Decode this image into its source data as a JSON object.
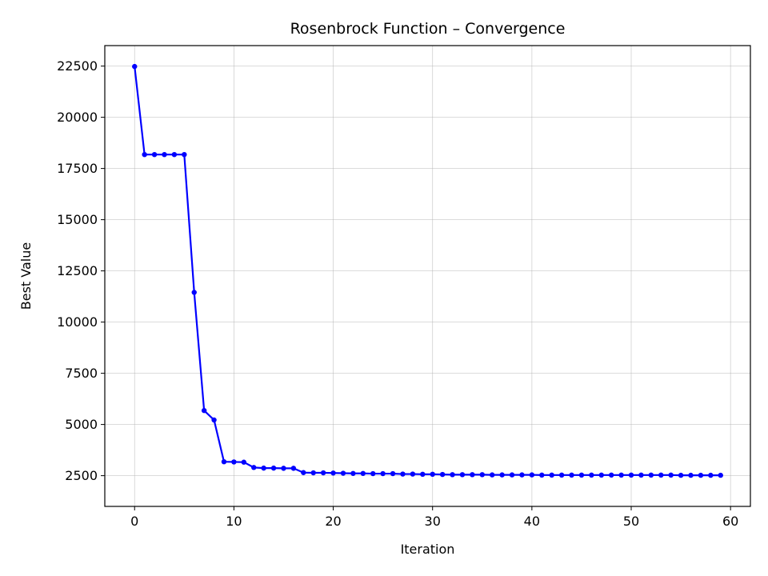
{
  "chart_data": {
    "type": "line",
    "title": "Rosenbrock Function – Convergence",
    "xlabel": "Iteration",
    "ylabel": "Best Value",
    "xlim": [
      -3,
      62
    ],
    "ylim": [
      1000,
      23500
    ],
    "xticks": [
      0,
      10,
      20,
      30,
      40,
      50,
      60
    ],
    "yticks": [
      2500,
      5000,
      7500,
      10000,
      12500,
      15000,
      17500,
      20000,
      22500
    ],
    "grid": true,
    "series": [
      {
        "color": "#0000ff",
        "marker": "circle",
        "x": [
          0,
          1,
          2,
          3,
          4,
          5,
          6,
          7,
          8,
          9,
          10,
          11,
          12,
          13,
          14,
          15,
          16,
          17,
          18,
          19,
          20,
          21,
          22,
          23,
          24,
          25,
          26,
          27,
          28,
          29,
          30,
          31,
          32,
          33,
          34,
          35,
          36,
          37,
          38,
          39,
          40,
          41,
          42,
          43,
          44,
          45,
          46,
          47,
          48,
          49,
          50,
          51,
          52,
          53,
          54,
          55,
          56,
          57,
          58,
          59
        ],
        "values": [
          22480,
          18180,
          18180,
          18180,
          18180,
          18180,
          11450,
          5680,
          5220,
          3180,
          3170,
          3160,
          2900,
          2870,
          2870,
          2860,
          2860,
          2650,
          2640,
          2640,
          2630,
          2620,
          2610,
          2610,
          2600,
          2600,
          2600,
          2580,
          2580,
          2570,
          2570,
          2560,
          2550,
          2550,
          2550,
          2550,
          2540,
          2540,
          2540,
          2540,
          2540,
          2530,
          2530,
          2530,
          2530,
          2530,
          2530,
          2530,
          2530,
          2530,
          2530,
          2530,
          2530,
          2530,
          2530,
          2520,
          2520,
          2520,
          2520,
          2520
        ]
      }
    ]
  }
}
